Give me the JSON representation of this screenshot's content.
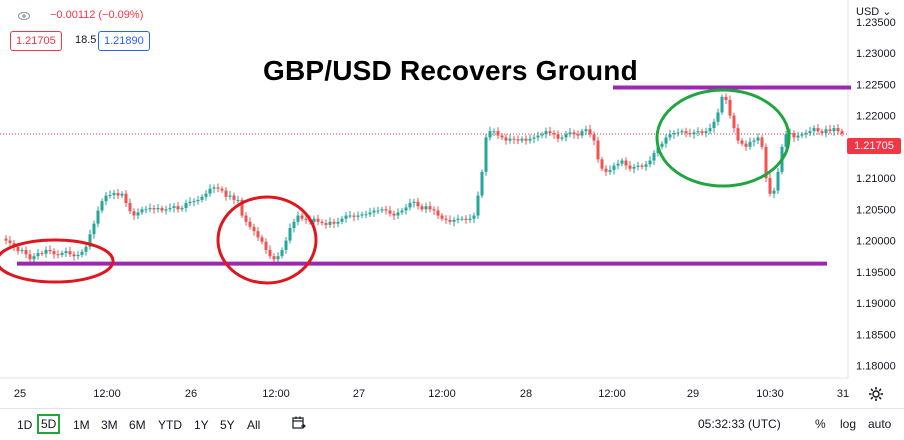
{
  "header": {
    "change_text": "−0.00112 (−0.09%)",
    "sell_price": "1.21705",
    "spread": "18.5",
    "buy_price": "1.21890",
    "currency": "USD ⌄"
  },
  "chart_data": {
    "type": "candlestick",
    "title": "GBP/USD Recovers Ground",
    "y_ticks": [
      "1.23500",
      "1.23000",
      "1.22500",
      "1.22000",
      "1.21500",
      "1.21000",
      "1.20500",
      "1.20000",
      "1.19500",
      "1.19000",
      "1.18500",
      "1.18000"
    ],
    "ylim": [
      1.178,
      1.2385
    ],
    "x_ticks": [
      "25",
      "12:00",
      "26",
      "12:00",
      "27",
      "12:00",
      "28",
      "12:00",
      "29",
      "10:30",
      "31"
    ],
    "last_price": 1.21705,
    "last_price_label": "1.21705",
    "series": [
      {
        "x": [
          0,
          4,
          8,
          12,
          16,
          20,
          24,
          28,
          32,
          36,
          40,
          44,
          48,
          52,
          56,
          60,
          64,
          68,
          72,
          76,
          80,
          84,
          88,
          92,
          96,
          100,
          104,
          108,
          112,
          116,
          120,
          124,
          128,
          132,
          136,
          140,
          144,
          148,
          152,
          156,
          160,
          164,
          168,
          172,
          176,
          180,
          184,
          188,
          192,
          196,
          200,
          204,
          208,
          212,
          216,
          220,
          224,
          228,
          232,
          236,
          240,
          244,
          248,
          252,
          256,
          260,
          264,
          268,
          272,
          276,
          280,
          284,
          288,
          292,
          296,
          300,
          304,
          308,
          312,
          316,
          320,
          324,
          328,
          332,
          336,
          340,
          344,
          348,
          352,
          356,
          360,
          364,
          368,
          372,
          376,
          380,
          384,
          388,
          392,
          396,
          400,
          404,
          408,
          412,
          416,
          420,
          424,
          428,
          432,
          436,
          440,
          444,
          448,
          452,
          456,
          460,
          464,
          468,
          472,
          476,
          480,
          484,
          488,
          492,
          496,
          500,
          504,
          508,
          512,
          516,
          520,
          524,
          528,
          532,
          536,
          540,
          544,
          548,
          552,
          556,
          560,
          564,
          568,
          572,
          576,
          580,
          584,
          588,
          592,
          596,
          600,
          604,
          608,
          612,
          616,
          620,
          624,
          628,
          632,
          636,
          640,
          644,
          648,
          652,
          656,
          660,
          664,
          668,
          672,
          676,
          680,
          684,
          688,
          692,
          696,
          700,
          704,
          708,
          712,
          716,
          720,
          724,
          728,
          732,
          736,
          740,
          744,
          748,
          752,
          756,
          760,
          764,
          768,
          772,
          776,
          780,
          784,
          788,
          792,
          796,
          800,
          804,
          808,
          812,
          816,
          820,
          824,
          828,
          832,
          836,
          840
        ],
        "y": [
          1.2003,
          1.2,
          1.1996,
          1.199,
          1.1983,
          1.1985,
          1.1978,
          1.197,
          1.1975,
          1.198,
          1.1979,
          1.1985,
          1.1983,
          1.1978,
          1.1977,
          1.198,
          1.1983,
          1.1978,
          1.1975,
          1.1977,
          1.1982,
          1.199,
          1.201,
          1.2027,
          1.2048,
          1.2063,
          1.2072,
          1.2073,
          1.2076,
          1.2072,
          1.2075,
          1.206,
          1.2047,
          1.204,
          1.2045,
          1.205,
          1.205,
          1.2052,
          1.205,
          1.2052,
          1.2048,
          1.205,
          1.2052,
          1.2055,
          1.205,
          1.2052,
          1.206,
          1.2062,
          1.2063,
          1.2065,
          1.207,
          1.2075,
          1.2083,
          1.2085,
          1.2083,
          1.208,
          1.207,
          1.2072,
          1.2065,
          1.2065,
          1.204,
          1.203,
          1.2022,
          1.2015,
          1.2005,
          1.1998,
          1.1985,
          1.1975,
          1.197,
          1.1975,
          1.1985,
          1.2,
          1.202,
          1.203,
          1.204,
          1.2035,
          1.2033,
          1.203,
          1.2035,
          1.203,
          1.2028,
          1.2025,
          1.203,
          1.2027,
          1.203,
          1.2035,
          1.204,
          1.204,
          1.2038,
          1.204,
          1.2042,
          1.2042,
          1.2045,
          1.2048,
          1.2048,
          1.205,
          1.2048,
          1.2043,
          1.204,
          1.2045,
          1.2048,
          1.2053,
          1.206,
          1.2062,
          1.2055,
          1.205,
          1.2055,
          1.205,
          1.2048,
          1.204,
          1.2035,
          1.2033,
          1.203,
          1.2033,
          1.2035,
          1.2035,
          1.2033,
          1.2035,
          1.204,
          1.2072,
          1.211,
          1.2165,
          1.2175,
          1.2175,
          1.2168,
          1.2165,
          1.216,
          1.2163,
          1.2162,
          1.216,
          1.2163,
          1.216,
          1.2163,
          1.2165,
          1.2168,
          1.217,
          1.2175,
          1.2172,
          1.217,
          1.2163,
          1.2165,
          1.217,
          1.2173,
          1.217,
          1.2168,
          1.2175,
          1.2178,
          1.217,
          1.216,
          1.213,
          1.2115,
          1.211,
          1.2113,
          1.212,
          1.2123,
          1.2128,
          1.212,
          1.2115,
          1.2118,
          1.212,
          1.2118,
          1.2122,
          1.2128,
          1.214,
          1.215,
          1.2155,
          1.2165,
          1.217,
          1.2172,
          1.2173,
          1.2175,
          1.2172,
          1.217,
          1.2173,
          1.2175,
          1.2172,
          1.2175,
          1.218,
          1.219,
          1.2205,
          1.223,
          1.2225,
          1.22,
          1.218,
          1.216,
          1.2155,
          1.215,
          1.2158,
          1.216,
          1.2165,
          1.215,
          1.21,
          1.2075,
          1.208,
          1.211,
          1.215,
          1.217,
          1.2172,
          1.2165,
          1.2168,
          1.217,
          1.2172,
          1.2175,
          1.218,
          1.2175,
          1.2172,
          1.2178,
          1.2175,
          1.218,
          1.2175,
          1.2171
        ]
      }
    ],
    "annotations": {
      "resistance_level": 1.2245,
      "support_level": 1.1963
    }
  },
  "range_buttons": [
    "1D",
    "5D",
    "1M",
    "3M",
    "6M",
    "YTD",
    "1Y",
    "5Y",
    "All"
  ],
  "active_range": "5D",
  "status": {
    "time": "05:32:33 (UTC)",
    "percent": "%",
    "log": "log",
    "auto": "auto"
  },
  "colors": {
    "up": "#26a69a",
    "down": "#ef5350",
    "price_line": "#f23645",
    "level_line": "#9c27b0",
    "circle_red": "#e0161e",
    "circle_green": "#21a541",
    "active_range_border": "#22a63a"
  }
}
